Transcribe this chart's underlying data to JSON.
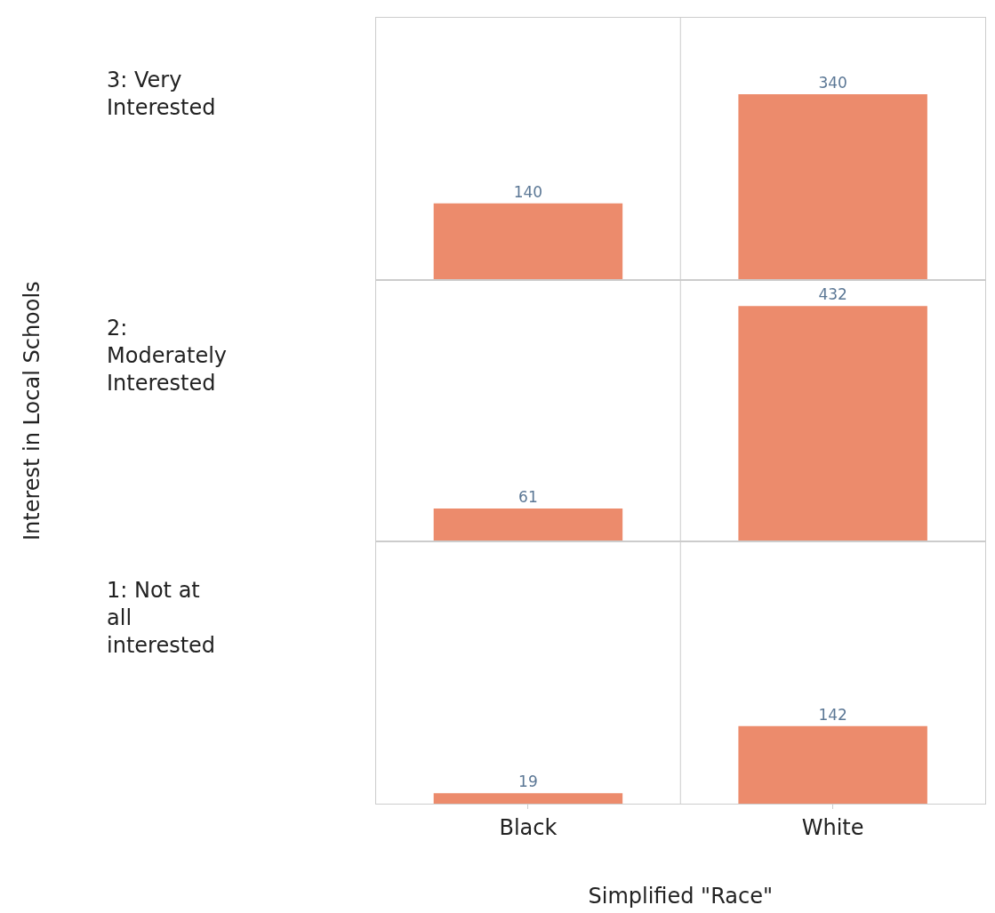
{
  "chart_data": [
    {
      "type": "bar",
      "ylabel": "3: Very Interested",
      "categories": [
        null,
        null
      ],
      "values": [
        140,
        340
      ],
      "color": "#ec8b6c",
      "data_labels": true,
      "ylim": [
        0,
        480
      ],
      "tick_labels": false
    },
    {
      "type": "bar",
      "ylabel": "2: Moderately Interested",
      "annotations": [
        "Interest in Local Schools"
      ],
      "categories": [
        null,
        null
      ],
      "values": [
        61,
        432
      ],
      "color": "#ec8b6c",
      "data_labels": true,
      "ylim": [
        0,
        480
      ],
      "tick_labels": false
    },
    {
      "type": "bar",
      "ylabel": "1: Not at all interested",
      "xlabel": "Simplified \"Race\"",
      "categories": [
        "Black",
        "White"
      ],
      "values": [
        19,
        142
      ],
      "color": "#ec8b6c",
      "data_labels": true,
      "ylim": [
        0,
        480
      ],
      "tick_labels": "x"
    }
  ]
}
